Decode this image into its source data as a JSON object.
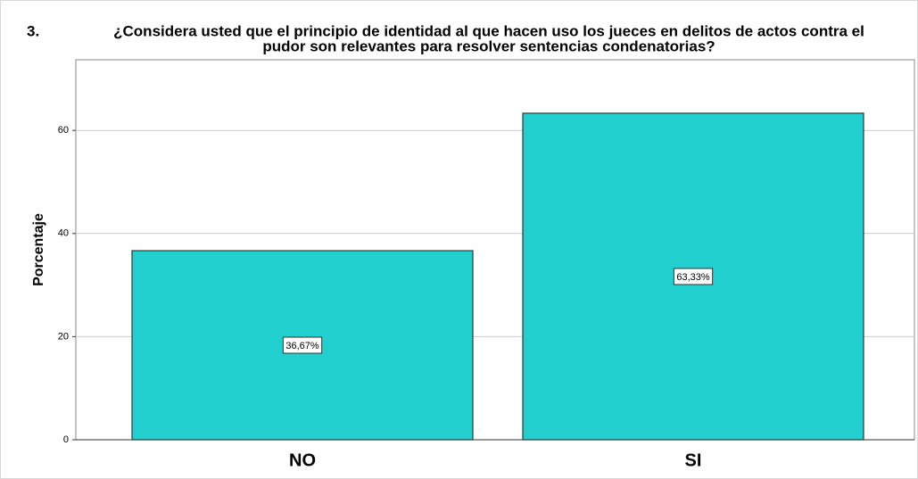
{
  "chart_data": {
    "type": "bar",
    "title_number": "3.",
    "title": [
      "¿Considera usted que el principio de identidad al que hacen uso los jueces en delitos de actos contra el",
      "pudor son relevantes para resolver sentencias condenatorias?"
    ],
    "y_label": "Porcentaje",
    "categories": [
      "NO",
      "SI"
    ],
    "values": [
      36.67,
      63.33
    ],
    "value_labels": [
      "36,67%",
      "63,33%"
    ],
    "color": "#22cfcf",
    "ylim": [
      0,
      73.7
    ],
    "yticks": [
      0,
      20,
      40,
      60
    ],
    "grid": true
  }
}
